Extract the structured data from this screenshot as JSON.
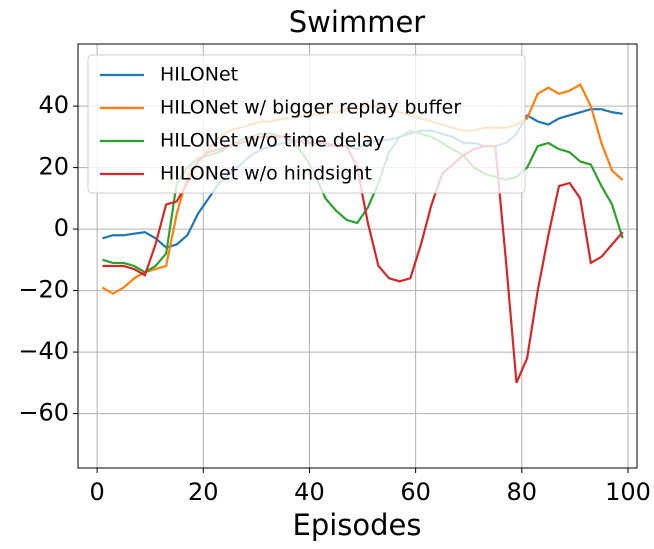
{
  "chart_data": {
    "type": "line",
    "title": "Swimmer",
    "xlabel": "Episodes",
    "x": [
      1,
      3,
      5,
      7,
      9,
      11,
      13,
      15,
      17,
      19,
      21,
      23,
      25,
      27,
      29,
      31,
      33,
      35,
      37,
      39,
      41,
      43,
      45,
      47,
      49,
      51,
      53,
      55,
      57,
      59,
      61,
      63,
      65,
      67,
      69,
      71,
      73,
      75,
      77,
      79,
      81,
      83,
      85,
      87,
      89,
      91,
      93,
      95,
      97,
      99
    ],
    "series": [
      {
        "name": "HILONet",
        "color": "#1f77b4",
        "values": [
          -3,
          -2,
          -2,
          -1.5,
          -1,
          -3,
          -6,
          -5,
          -2,
          5,
          10,
          15,
          18,
          21,
          24,
          26,
          27,
          28,
          28,
          29,
          28,
          27,
          27,
          27,
          26,
          28,
          29,
          29,
          30,
          31,
          32,
          32,
          31,
          30,
          28,
          28,
          27,
          27,
          28,
          31,
          37,
          35,
          34,
          36,
          37,
          38,
          39,
          39,
          38,
          37.5
        ]
      },
      {
        "name": "HILONet w/ bigger replay buffer",
        "color": "#ff7f0e",
        "values": [
          -19,
          -21,
          -19,
          -16,
          -14,
          -13,
          -12,
          5,
          17,
          22,
          26,
          30,
          32,
          33,
          34,
          35,
          35,
          36,
          36,
          37,
          37,
          38,
          38,
          39,
          39,
          40,
          40,
          39,
          38,
          37,
          36,
          35,
          34,
          33,
          32,
          32,
          33,
          33,
          33,
          34,
          36,
          44,
          46,
          44,
          45,
          47,
          40,
          28,
          19,
          16
        ]
      },
      {
        "name": "HILONet w/o time delay",
        "color": "#2ca02c",
        "values": [
          -10,
          -11,
          -11,
          -12,
          -14,
          -12,
          -8,
          15,
          20,
          23,
          24,
          25,
          27,
          29,
          30,
          31,
          31,
          30,
          28,
          24,
          18,
          10,
          6,
          3,
          2,
          7,
          15,
          25,
          30,
          32,
          31,
          30,
          28,
          26,
          24,
          20,
          18,
          17,
          16,
          17,
          20,
          27,
          28,
          26,
          25,
          22,
          21,
          14,
          8,
          -3
        ]
      },
      {
        "name": "HILONet w/o hindsight",
        "color": "#d62728",
        "values": [
          -12,
          -12,
          -12,
          -13,
          -15,
          -5,
          8,
          9,
          15,
          22,
          25,
          26,
          27,
          28,
          29,
          30,
          30,
          30,
          29,
          28,
          28,
          28,
          27,
          27,
          20,
          2,
          -12,
          -16,
          -17,
          -16,
          -5,
          8,
          18,
          21,
          24,
          26,
          27,
          27,
          -10,
          -50,
          -42,
          -20,
          -2,
          14,
          15,
          10,
          -11,
          -9,
          -5,
          -1
        ]
      }
    ],
    "xlim": [
      -3.6,
      101.7
    ],
    "ylim": [
      -77.7,
      60.2
    ],
    "xticks": [
      0,
      20,
      40,
      60,
      80,
      100
    ],
    "yticks": [
      {
        "value": -60,
        "label": "−60"
      },
      {
        "value": -40,
        "label": "−40"
      },
      {
        "value": -20,
        "label": "−20"
      },
      0,
      20,
      40
    ],
    "grid": true,
    "legend": "upper left"
  }
}
